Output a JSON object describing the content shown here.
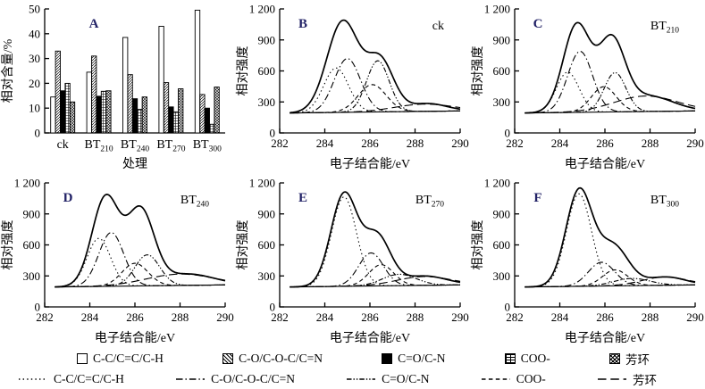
{
  "colors": {
    "axis": "#000000",
    "curves": "#000000",
    "panel_letter": "#222266",
    "background": "#ffffff"
  },
  "figure": {
    "legend_bars": [
      {
        "label": "C-C/C=C/C-H",
        "pattern": "white"
      },
      {
        "label": "C-O/C-O-C/C=N",
        "pattern": "hatch"
      },
      {
        "label": "C=O/C-N",
        "pattern": "black"
      },
      {
        "label": "COO-",
        "pattern": "brick"
      },
      {
        "label": "芳环",
        "pattern": "cross"
      }
    ],
    "legend_lines": [
      {
        "label": "C-C/C=C/C-H",
        "style": "dotted"
      },
      {
        "label": "C-O/C-O-C/C=N",
        "style": "dashdot"
      },
      {
        "label": "C=O/C-N",
        "style": "densedash"
      },
      {
        "label": "COO-",
        "style": "dashed"
      },
      {
        "label": "芳环",
        "style": "longdash"
      }
    ]
  },
  "chart_data": [
    {
      "id": "A",
      "type": "bar",
      "panel_label": "A",
      "title": "",
      "xlabel": "处理",
      "ylabel": "相对含量/%",
      "ylim": [
        0,
        50
      ],
      "yticks": [
        0,
        10,
        20,
        30,
        40,
        50
      ],
      "categories": [
        {
          "text": "ck",
          "sub": ""
        },
        {
          "text": "BT",
          "sub": "210"
        },
        {
          "text": "BT",
          "sub": "240"
        },
        {
          "text": "BT",
          "sub": "270"
        },
        {
          "text": "BT",
          "sub": "300"
        }
      ],
      "series": [
        {
          "name": "C-C/C=C/C-H",
          "pattern": "white",
          "values": [
            14.5,
            24.5,
            38.5,
            43.0,
            49.5
          ]
        },
        {
          "name": "C-O/C-O-C/C=N",
          "pattern": "hatch",
          "values": [
            33.0,
            31.0,
            23.5,
            20.3,
            15.5
          ]
        },
        {
          "name": "C=O/C-N",
          "pattern": "black",
          "values": [
            17.0,
            14.8,
            13.8,
            10.5,
            10.0
          ]
        },
        {
          "name": "COO-",
          "pattern": "brick",
          "values": [
            20.0,
            16.8,
            9.5,
            8.5,
            3.5
          ]
        },
        {
          "name": "芳环",
          "pattern": "cross",
          "values": [
            12.5,
            17.0,
            14.5,
            17.8,
            18.5
          ]
        }
      ]
    },
    {
      "id": "B",
      "type": "line",
      "panel_label": "B",
      "treatment": {
        "text": "ck",
        "sub": ""
      },
      "xlabel": "电子结合能/eV",
      "ylabel": "相对强度",
      "xlim": [
        282,
        290
      ],
      "ylim": [
        0,
        1200
      ],
      "xticks": [
        282,
        284,
        286,
        288,
        290
      ],
      "yticks": [
        0,
        300,
        600,
        900,
        1200
      ],
      "baseline": {
        "start": [
          282.45,
          193
        ],
        "end": [
          290,
          213
        ]
      },
      "curves": [
        {
          "name": "C-C/C=C/C-H",
          "style": "dotted",
          "peaks": [
            [
              284.5,
              430,
              0.55
            ]
          ]
        },
        {
          "name": "C-O/C-O-C/C=N",
          "style": "dashdot",
          "peaks": [
            [
              285.0,
              520,
              0.58
            ]
          ]
        },
        {
          "name": "C=O/C-N",
          "style": "densedash",
          "peaks": [
            [
              286.35,
              495,
              0.5
            ]
          ]
        },
        {
          "name": "COO-",
          "style": "dashed",
          "peaks": [
            [
              286.1,
              265,
              0.62
            ]
          ]
        },
        {
          "name": "芳环",
          "style": "longdash",
          "peaks": [
            [
              288.4,
              70,
              1.3
            ]
          ]
        },
        {
          "name": "envelope",
          "style": "solid",
          "peaks": [
            [
              284.8,
              880,
              0.7
            ],
            [
              286.45,
              495,
              0.6
            ],
            [
              288.55,
              75,
              0.85
            ]
          ]
        }
      ]
    },
    {
      "id": "C",
      "type": "line",
      "panel_label": "C",
      "treatment": {
        "text": "BT",
        "sub": "210"
      },
      "xlabel": "电子结合能/eV",
      "ylabel": "相对强度",
      "xlim": [
        282,
        290
      ],
      "ylim": [
        0,
        1200
      ],
      "xticks": [
        282,
        284,
        286,
        288,
        290
      ],
      "yticks": [
        0,
        300,
        600,
        900,
        1200
      ],
      "baseline": {
        "start": [
          282.45,
          193
        ],
        "end": [
          290,
          213
        ]
      },
      "curves": [
        {
          "name": "C-C/C=C/C-H",
          "style": "dotted",
          "peaks": [
            [
              284.35,
              390,
              0.5
            ]
          ]
        },
        {
          "name": "C-O/C-O-C/C=N",
          "style": "dashdot",
          "peaks": [
            [
              284.9,
              590,
              0.55
            ]
          ]
        },
        {
          "name": "C=O/C-N",
          "style": "densedash",
          "peaks": [
            [
              286.45,
              380,
              0.48
            ]
          ]
        },
        {
          "name": "COO-",
          "style": "dashed",
          "peaks": [
            [
              285.95,
              245,
              0.55
            ]
          ]
        },
        {
          "name": "芳环",
          "style": "longdash",
          "peaks": [
            [
              287.8,
              150,
              1.4
            ]
          ]
        },
        {
          "name": "envelope",
          "style": "solid",
          "peaks": [
            [
              284.75,
              845,
              0.6
            ],
            [
              286.3,
              665,
              0.58
            ],
            [
              287.9,
              150,
              1.1
            ]
          ]
        }
      ]
    },
    {
      "id": "D",
      "type": "line",
      "panel_label": "D",
      "treatment": {
        "text": "BT",
        "sub": "240"
      },
      "xlabel": "电子结合能/eV",
      "ylabel": "相对强度",
      "xlim": [
        282,
        290
      ],
      "ylim": [
        0,
        1200
      ],
      "xticks": [
        282,
        284,
        286,
        288,
        290
      ],
      "yticks": [
        0,
        300,
        600,
        900,
        1200
      ],
      "baseline": {
        "start": [
          282.45,
          193
        ],
        "end": [
          290,
          213
        ]
      },
      "curves": [
        {
          "name": "C-C/C=C/C-H",
          "style": "dotted",
          "peaks": [
            [
              284.4,
              465,
              0.52
            ]
          ]
        },
        {
          "name": "C-O/C-O-C/C=N",
          "style": "dashdot",
          "peaks": [
            [
              284.95,
              520,
              0.55
            ]
          ]
        },
        {
          "name": "C=O/C-N",
          "style": "densedash",
          "peaks": [
            [
              286.55,
              300,
              0.55
            ]
          ]
        },
        {
          "name": "COO-",
          "style": "dashed",
          "peaks": [
            [
              286.0,
              220,
              0.58
            ]
          ]
        },
        {
          "name": "芳环",
          "style": "longdash",
          "peaks": [
            [
              288.0,
              110,
              1.5
            ]
          ]
        },
        {
          "name": "envelope",
          "style": "solid",
          "peaks": [
            [
              284.7,
              860,
              0.6
            ],
            [
              286.25,
              715,
              0.6
            ],
            [
              288.3,
              110,
              1.2
            ]
          ]
        }
      ]
    },
    {
      "id": "E",
      "type": "line",
      "panel_label": "E",
      "treatment": {
        "text": "BT",
        "sub": "270"
      },
      "xlabel": "电子结合能/eV",
      "ylabel": "相对强度",
      "xlim": [
        282,
        290
      ],
      "ylim": [
        0,
        1200
      ],
      "xticks": [
        282,
        284,
        286,
        288,
        290
      ],
      "yticks": [
        0,
        300,
        600,
        900,
        1200
      ],
      "baseline": {
        "start": [
          282.45,
          193
        ],
        "end": [
          290,
          213
        ]
      },
      "curves": [
        {
          "name": "C-C/C=C/C-H",
          "style": "dotted",
          "peaks": [
            [
              284.85,
              865,
              0.55
            ]
          ]
        },
        {
          "name": "C-O/C-O-C/C=N",
          "style": "dashdot",
          "peaks": [
            [
              286.05,
              320,
              0.55
            ]
          ]
        },
        {
          "name": "C=O/C-N",
          "style": "densedash",
          "peaks": [
            [
              287.3,
              110,
              0.75
            ]
          ]
        },
        {
          "name": "COO-",
          "style": "dashed",
          "peaks": [
            [
              286.5,
              205,
              0.55
            ]
          ]
        },
        {
          "name": "芳环",
          "style": "longdash",
          "peaks": [
            [
              288.4,
              85,
              1.2
            ]
          ]
        },
        {
          "name": "envelope",
          "style": "solid",
          "peaks": [
            [
              284.85,
              885,
              0.58
            ],
            [
              286.3,
              480,
              0.6
            ],
            [
              288.4,
              90,
              1.0
            ]
          ]
        }
      ]
    },
    {
      "id": "F",
      "type": "line",
      "panel_label": "F",
      "treatment": {
        "text": "BT",
        "sub": "300"
      },
      "xlabel": "电子结合能/eV",
      "ylabel": "相对强度",
      "xlim": [
        282,
        290
      ],
      "ylim": [
        0,
        1200
      ],
      "xticks": [
        282,
        284,
        286,
        288,
        290
      ],
      "yticks": [
        0,
        300,
        600,
        900,
        1200
      ],
      "baseline": {
        "start": [
          282.45,
          193
        ],
        "end": [
          290,
          213
        ]
      },
      "curves": [
        {
          "name": "C-C/C=C/C-H",
          "style": "dotted",
          "peaks": [
            [
              284.85,
              895,
              0.55
            ]
          ]
        },
        {
          "name": "C-O/C-O-C/C=N",
          "style": "dashdot",
          "peaks": [
            [
              285.85,
              230,
              0.58
            ]
          ]
        },
        {
          "name": "C=O/C-N",
          "style": "densedash",
          "peaks": [
            [
              287.2,
              70,
              0.8
            ]
          ]
        },
        {
          "name": "COO-",
          "style": "dashed",
          "peaks": [
            [
              286.45,
              155,
              0.55
            ]
          ]
        },
        {
          "name": "芳环",
          "style": "longdash",
          "peaks": [
            [
              288.65,
              80,
              1.0
            ]
          ]
        },
        {
          "name": "envelope",
          "style": "solid",
          "peaks": [
            [
              284.85,
              915,
              0.58
            ],
            [
              286.35,
              390,
              0.68
            ],
            [
              288.7,
              80,
              0.85
            ]
          ]
        }
      ]
    }
  ]
}
